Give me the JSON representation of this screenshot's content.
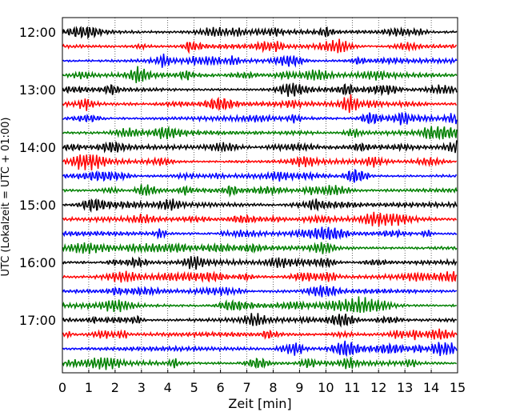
{
  "chart_data": {
    "type": "line",
    "title": "",
    "xlabel": "Zeit  [min]",
    "ylabel": "UTC (Lokalzeit = UTC + 01:00)",
    "xlim": [
      0,
      15
    ],
    "x_ticks": [
      "0",
      "1",
      "2",
      "3",
      "4",
      "5",
      "6",
      "7",
      "8",
      "9",
      "10",
      "11",
      "12",
      "13",
      "14",
      "15"
    ],
    "y_tick_labels": [
      "12:00",
      "13:00",
      "14:00",
      "15:00",
      "16:00",
      "17:00"
    ],
    "grid": "vertical dotted lines at each minute",
    "trace_colors": [
      "#000000",
      "#ff0000",
      "#0000ff",
      "#008000"
    ],
    "traces": [
      {
        "start": "12:00",
        "color": "#000000"
      },
      {
        "start": "12:15",
        "color": "#ff0000"
      },
      {
        "start": "12:30",
        "color": "#0000ff"
      },
      {
        "start": "12:45",
        "color": "#008000"
      },
      {
        "start": "13:00",
        "color": "#000000"
      },
      {
        "start": "13:15",
        "color": "#ff0000"
      },
      {
        "start": "13:30",
        "color": "#0000ff"
      },
      {
        "start": "13:45",
        "color": "#008000"
      },
      {
        "start": "14:00",
        "color": "#000000"
      },
      {
        "start": "14:15",
        "color": "#ff0000"
      },
      {
        "start": "14:30",
        "color": "#0000ff"
      },
      {
        "start": "14:45",
        "color": "#008000"
      },
      {
        "start": "15:00",
        "color": "#000000"
      },
      {
        "start": "15:15",
        "color": "#ff0000"
      },
      {
        "start": "15:30",
        "color": "#0000ff"
      },
      {
        "start": "15:45",
        "color": "#008000"
      },
      {
        "start": "16:00",
        "color": "#000000"
      },
      {
        "start": "16:15",
        "color": "#ff0000"
      },
      {
        "start": "16:30",
        "color": "#0000ff"
      },
      {
        "start": "16:45",
        "color": "#008000"
      },
      {
        "start": "17:00",
        "color": "#000000"
      },
      {
        "start": "17:15",
        "color": "#ff0000"
      },
      {
        "start": "17:30",
        "color": "#0000ff"
      },
      {
        "start": "17:45",
        "color": "#008000"
      }
    ]
  }
}
